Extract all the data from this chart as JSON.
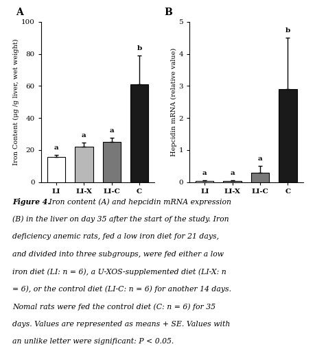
{
  "panel_A": {
    "categories": [
      "LI",
      "LI-X",
      "LI-C",
      "C"
    ],
    "values": [
      15.5,
      22.0,
      25.0,
      61.0
    ],
    "errors": [
      1.5,
      2.5,
      2.5,
      18.0
    ],
    "bar_colors": [
      "#ffffff",
      "#b8b8b8",
      "#787878",
      "#1a1a1a"
    ],
    "bar_edge_colors": [
      "#000000",
      "#000000",
      "#000000",
      "#000000"
    ],
    "ylim": [
      0,
      100
    ],
    "yticks": [
      0,
      20,
      40,
      60,
      80,
      100
    ],
    "title": "A",
    "letters": [
      "a",
      "a",
      "a",
      "b"
    ],
    "ylabel": "Iron Content (μg /g liver, wet weight)"
  },
  "panel_B": {
    "categories": [
      "LI",
      "LI-X",
      "LI-C",
      "C"
    ],
    "values": [
      0.04,
      0.04,
      0.28,
      2.9
    ],
    "errors": [
      0.02,
      0.02,
      0.22,
      1.6
    ],
    "bar_colors": [
      "#ffffff",
      "#b8b8b8",
      "#787878",
      "#1a1a1a"
    ],
    "bar_edge_colors": [
      "#000000",
      "#000000",
      "#000000",
      "#000000"
    ],
    "ylim": [
      0,
      5
    ],
    "yticks": [
      0,
      1,
      2,
      3,
      4,
      5
    ],
    "title": "B",
    "letters": [
      "a",
      "a",
      "a",
      "b"
    ],
    "ylabel": "Hepcidin mRNA (relative value)"
  },
  "caption_lines": [
    "Figure 4. Iron content (A) and hepcidin mRNA expression",
    "(B) in the liver on day 35 after the start of the study. Iron",
    "deficiency anemic rats, fed a low iron diet for 21 days,",
    "and divided into three subgroups, were fed either a low",
    "iron diet (LI: n = 6), a U-XOS-supplemented diet (LI-X: n",
    "= 6), or the control diet (LI-C: n = 6) for another 14 days.",
    "Nomal rats were fed the control diet (C: n = 6) for 35",
    "days. Values are represented as means + SE. Values with",
    "an unlike letter were significant: P < 0.05."
  ],
  "background_color": "#ffffff",
  "bar_width": 0.65
}
